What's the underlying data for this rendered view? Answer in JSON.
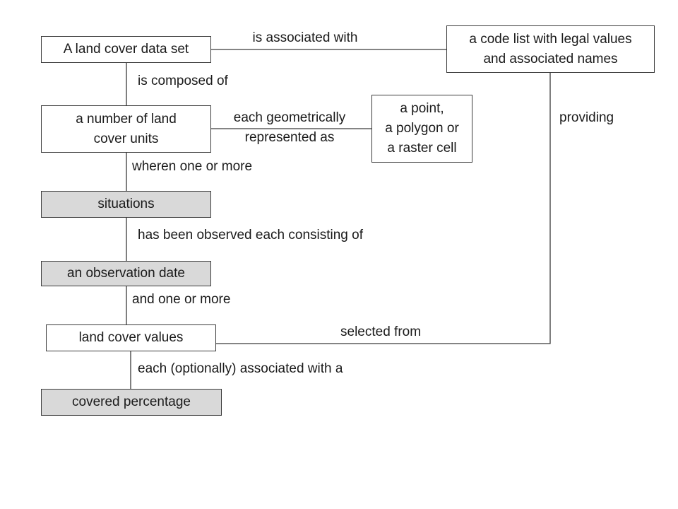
{
  "boxes": {
    "dataset": "A land cover data set",
    "codelist": "a code list with legal values\nand associated names",
    "units": "a number of land\ncover units",
    "geometry": "a point,\na polygon or\na raster cell",
    "situations": "situations",
    "obs_date": "an observation date",
    "lc_values": "land cover values",
    "covered_pct": "covered percentage"
  },
  "relations": {
    "associated_with": "is associated with",
    "composed_of": "is composed of",
    "geometrically": "each geometrically\nrepresented as",
    "providing": "providing",
    "wheren": "wheren one or more",
    "observed": "has been observed each consisting of",
    "one_or_more": "and one or more",
    "selected_from": "selected from",
    "optionally": "each (optionally) associated with a"
  },
  "colors": {
    "shaded_fill": "#d9d9d9",
    "line": "#3a3a3a"
  }
}
